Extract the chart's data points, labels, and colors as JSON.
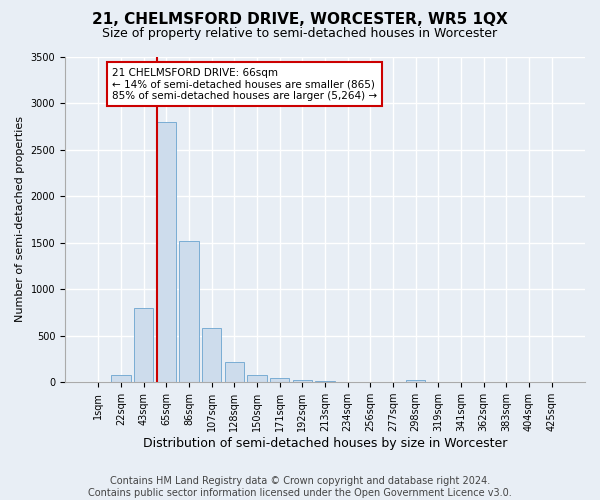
{
  "title": "21, CHELMSFORD DRIVE, WORCESTER, WR5 1QX",
  "subtitle": "Size of property relative to semi-detached houses in Worcester",
  "xlabel": "Distribution of semi-detached houses by size in Worcester",
  "ylabel": "Number of semi-detached properties",
  "footer": "Contains HM Land Registry data © Crown copyright and database right 2024.\nContains public sector information licensed under the Open Government Licence v3.0.",
  "categories": [
    "1sqm",
    "22sqm",
    "43sqm",
    "65sqm",
    "86sqm",
    "107sqm",
    "128sqm",
    "150sqm",
    "171sqm",
    "192sqm",
    "213sqm",
    "234sqm",
    "256sqm",
    "277sqm",
    "298sqm",
    "319sqm",
    "341sqm",
    "362sqm",
    "383sqm",
    "404sqm",
    "425sqm"
  ],
  "values": [
    0,
    80,
    800,
    2800,
    1520,
    580,
    220,
    80,
    40,
    20,
    10,
    5,
    3,
    0,
    20,
    0,
    0,
    0,
    0,
    0,
    0
  ],
  "bar_color": "#cddcec",
  "bar_edge_color": "#7aadd4",
  "highlight_index": 3,
  "highlight_line_color": "#cc0000",
  "annotation_text": "21 CHELMSFORD DRIVE: 66sqm\n← 14% of semi-detached houses are smaller (865)\n85% of semi-detached houses are larger (5,264) →",
  "annotation_box_color": "white",
  "annotation_box_edge": "#cc0000",
  "ylim": [
    0,
    3500
  ],
  "yticks": [
    0,
    500,
    1000,
    1500,
    2000,
    2500,
    3000,
    3500
  ],
  "title_fontsize": 11,
  "subtitle_fontsize": 9,
  "xlabel_fontsize": 9,
  "ylabel_fontsize": 8,
  "footer_fontsize": 7,
  "tick_fontsize": 7,
  "annotation_fontsize": 7.5,
  "background_color": "#e8eef5",
  "plot_background": "#e8eef5",
  "grid_color": "white"
}
